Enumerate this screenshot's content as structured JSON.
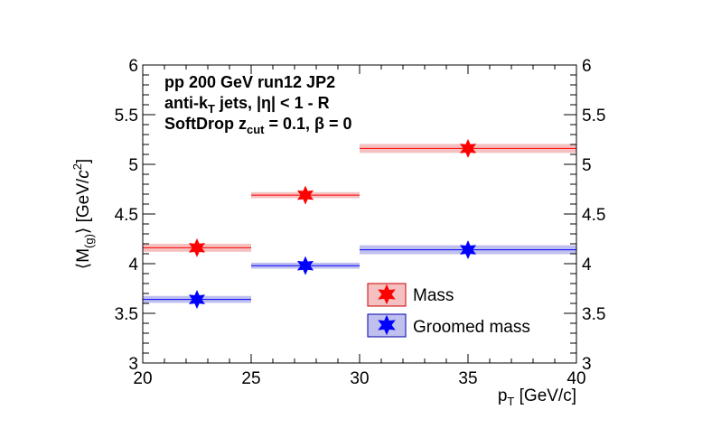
{
  "chart_data": {
    "type": "scatter",
    "x_bins": [
      [
        20,
        25
      ],
      [
        25,
        30
      ],
      [
        30,
        40
      ]
    ],
    "series": [
      {
        "name": "Mass",
        "color": "#ff0000",
        "band_color": "#f4c0c0",
        "x": [
          22.5,
          27.5,
          35
        ],
        "y": [
          4.16,
          4.69,
          5.16
        ],
        "sys_band": [
          0.04,
          0.03,
          0.045
        ]
      },
      {
        "name": "Groomed mass",
        "color": "#0000ff",
        "band_color": "#c0c0ee",
        "x": [
          22.5,
          27.5,
          35
        ],
        "y": [
          3.64,
          3.98,
          4.14
        ],
        "sys_band": [
          0.035,
          0.03,
          0.045
        ]
      }
    ],
    "xlim": [
      20,
      40
    ],
    "ylim": [
      3,
      6
    ],
    "x_ticks": [
      "20",
      "25",
      "30",
      "35",
      "40"
    ],
    "y_ticks": [
      "3",
      "3.5",
      "4",
      "4.5",
      "5",
      "5.5",
      "6"
    ],
    "xlabel": {
      "p": "p",
      "sub": "T",
      "rest": " [GeV/c]"
    },
    "ylabel": {
      "open": "⟨M",
      "sub": "(g)",
      "mid": "⟩ [GeV/",
      "c": "c",
      "sup": "2",
      "close": "]"
    },
    "annotations": {
      "line1": "pp 200 GeV run12 JP2",
      "line2": {
        "a": "anti-k",
        "sub": "T",
        "b": " jets, |η| < 1 - R"
      },
      "line3": {
        "a": "SoftDrop z",
        "sub": "cut",
        "b": " = 0.1, β = 0"
      }
    },
    "legend_position": "bottom-right",
    "grid": false
  }
}
